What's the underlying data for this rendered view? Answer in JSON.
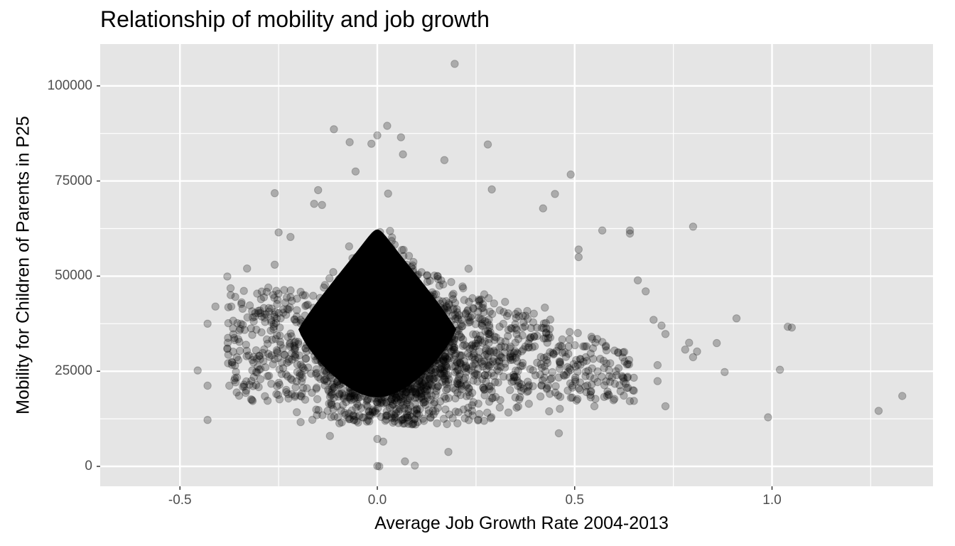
{
  "chart_data": {
    "type": "scatter",
    "title": "Relationship of mobility and job growth",
    "xlabel": "Average Job Growth Rate 2004-2013",
    "ylabel": "Mobility for Children of Parents in P25",
    "xlim": [
      -0.7,
      1.41
    ],
    "ylim": [
      -5000,
      111000
    ],
    "x_ticks": [
      -0.5,
      0.0,
      0.5,
      1.0
    ],
    "x_tick_labels": [
      "-0.5",
      "0.0",
      "0.5",
      "1.0"
    ],
    "y_ticks": [
      0,
      25000,
      50000,
      75000,
      100000
    ],
    "y_tick_labels": [
      "0",
      "25000",
      "50000",
      "75000",
      "100000"
    ],
    "grid": true,
    "panel_background": "#e5e5e5",
    "grid_color": "#ffffff",
    "point_color": "#000000",
    "point_alpha": 0.25,
    "legend": null,
    "dense_cluster": {
      "description": "Very dense cluster of thousands of overlapping points centered near x=0.0, y=30000",
      "center_x": 0.0,
      "center_y": 32000,
      "x_range": [
        -0.25,
        0.25
      ],
      "y_range": [
        14000,
        65000
      ]
    },
    "outlier_points": [
      {
        "x": 0.196,
        "y": 105800
      },
      {
        "x": 0.025,
        "y": 89500
      },
      {
        "x": -0.11,
        "y": 88600
      },
      {
        "x": 0.0,
        "y": 87000
      },
      {
        "x": -0.07,
        "y": 85200
      },
      {
        "x": -0.015,
        "y": 84800
      },
      {
        "x": 0.06,
        "y": 86500
      },
      {
        "x": 0.28,
        "y": 84600
      },
      {
        "x": 0.065,
        "y": 82000
      },
      {
        "x": 0.17,
        "y": 80500
      },
      {
        "x": -0.055,
        "y": 77500
      },
      {
        "x": 0.49,
        "y": 76700
      },
      {
        "x": -0.26,
        "y": 71800
      },
      {
        "x": 0.45,
        "y": 71600
      },
      {
        "x": 0.29,
        "y": 72800
      },
      {
        "x": -0.15,
        "y": 72600
      },
      {
        "x": 0.42,
        "y": 67800
      },
      {
        "x": 0.57,
        "y": 62000
      },
      {
        "x": 0.64,
        "y": 62000
      },
      {
        "x": 0.64,
        "y": 61200
      },
      {
        "x": 0.8,
        "y": 63000
      },
      {
        "x": 0.51,
        "y": 57000
      },
      {
        "x": 0.51,
        "y": 55000
      },
      {
        "x": 0.66,
        "y": 48900
      },
      {
        "x": 0.68,
        "y": 46000
      },
      {
        "x": 0.91,
        "y": 38900
      },
      {
        "x": 1.04,
        "y": 36700
      },
      {
        "x": 1.05,
        "y": 36500
      },
      {
        "x": 0.7,
        "y": 38500
      },
      {
        "x": 0.72,
        "y": 37000
      },
      {
        "x": 0.73,
        "y": 34800
      },
      {
        "x": 0.79,
        "y": 32500
      },
      {
        "x": 0.78,
        "y": 30700
      },
      {
        "x": 0.81,
        "y": 30200
      },
      {
        "x": 0.8,
        "y": 28700
      },
      {
        "x": 0.86,
        "y": 32400
      },
      {
        "x": 0.88,
        "y": 24800
      },
      {
        "x": 1.02,
        "y": 25400
      },
      {
        "x": 0.71,
        "y": 26600
      },
      {
        "x": 0.71,
        "y": 22400
      },
      {
        "x": 0.73,
        "y": 15800
      },
      {
        "x": 0.99,
        "y": 12900
      },
      {
        "x": 1.27,
        "y": 14600
      },
      {
        "x": 1.33,
        "y": 18500
      },
      {
        "x": 0.46,
        "y": 8700
      },
      {
        "x": 0.65,
        "y": 17200
      },
      {
        "x": 0.65,
        "y": 19900
      },
      {
        "x": 0.55,
        "y": 15800
      },
      {
        "x": 0.18,
        "y": 3800
      },
      {
        "x": 0.07,
        "y": 1300
      },
      {
        "x": 0.095,
        "y": 200
      },
      {
        "x": 0.0,
        "y": 100
      },
      {
        "x": 0.005,
        "y": 0
      },
      {
        "x": 0.015,
        "y": 6500
      },
      {
        "x": 0.0,
        "y": 7200
      },
      {
        "x": -0.12,
        "y": 8000
      },
      {
        "x": -0.43,
        "y": 12200
      },
      {
        "x": -0.455,
        "y": 25200
      },
      {
        "x": -0.43,
        "y": 21200
      },
      {
        "x": -0.43,
        "y": 37500
      },
      {
        "x": -0.41,
        "y": 42000
      },
      {
        "x": -0.38,
        "y": 49900
      },
      {
        "x": -0.37,
        "y": 42000
      },
      {
        "x": -0.38,
        "y": 30900
      },
      {
        "x": -0.33,
        "y": 52000
      },
      {
        "x": -0.26,
        "y": 53000
      },
      {
        "x": -0.25,
        "y": 61500
      },
      {
        "x": -0.22,
        "y": 60300
      },
      {
        "x": -0.16,
        "y": 69000
      },
      {
        "x": -0.14,
        "y": 68700
      }
    ]
  }
}
